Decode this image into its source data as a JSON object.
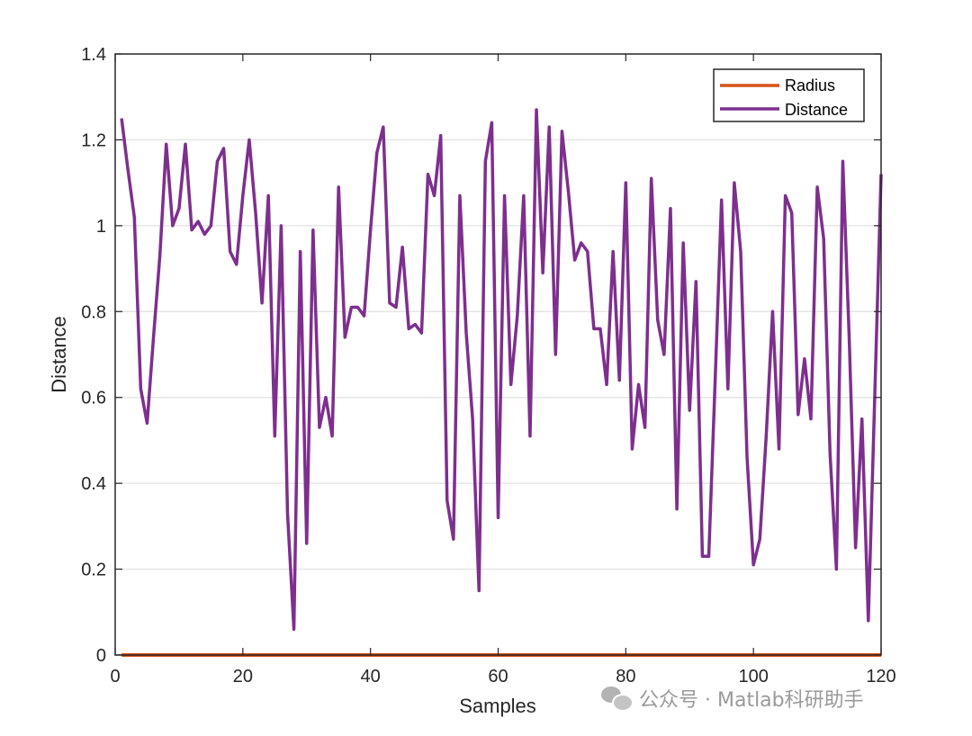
{
  "chart_data": {
    "type": "line",
    "title": "",
    "xlabel": "Samples",
    "ylabel": "Distance",
    "xlim": [
      0,
      120
    ],
    "ylim": [
      0,
      1.4
    ],
    "xticks": [
      0,
      20,
      40,
      60,
      80,
      100,
      120
    ],
    "xtick_labels": [
      "0",
      "20",
      "40",
      "60",
      "80",
      "100",
      "120"
    ],
    "yticks": [
      0,
      0.2,
      0.4,
      0.6,
      0.8,
      1.0,
      1.2,
      1.4
    ],
    "ytick_labels": [
      "0",
      "0.2",
      "0.4",
      "0.6",
      "0.8",
      "1",
      "1.2",
      "1.4"
    ],
    "grid": "horizontal",
    "legend_position": "top-right",
    "series": [
      {
        "name": "Radius",
        "color": "#D95319",
        "x": [
          1,
          120
        ],
        "values": [
          0,
          0
        ]
      },
      {
        "name": "Distance",
        "color": "#7E2F8E",
        "x": [
          1,
          2,
          3,
          4,
          5,
          6,
          7,
          8,
          9,
          10,
          11,
          12,
          13,
          14,
          15,
          16,
          17,
          18,
          19,
          20,
          21,
          22,
          23,
          24,
          25,
          26,
          27,
          28,
          29,
          30,
          31,
          32,
          33,
          34,
          35,
          36,
          37,
          38,
          39,
          40,
          41,
          42,
          43,
          44,
          45,
          46,
          47,
          48,
          49,
          50,
          51,
          52,
          53,
          54,
          55,
          56,
          57,
          58,
          59,
          60,
          61,
          62,
          63,
          64,
          65,
          66,
          67,
          68,
          69,
          70,
          71,
          72,
          73,
          74,
          75,
          76,
          77,
          78,
          79,
          80,
          81,
          82,
          83,
          84,
          85,
          86,
          87,
          88,
          89,
          90,
          91,
          92,
          93,
          94,
          95,
          96,
          97,
          98,
          99,
          100,
          101,
          102,
          103,
          104,
          105,
          106,
          107,
          108,
          109,
          110,
          111,
          112,
          113,
          114,
          115,
          116,
          117,
          118,
          119,
          120
        ],
        "values": [
          1.25,
          1.13,
          1.02,
          0.62,
          0.54,
          0.74,
          0.93,
          1.19,
          1.0,
          1.04,
          1.19,
          0.99,
          1.01,
          0.98,
          1.0,
          1.15,
          1.18,
          0.94,
          0.91,
          1.07,
          1.2,
          1.03,
          0.82,
          1.07,
          0.51,
          1.0,
          0.33,
          0.06,
          0.94,
          0.26,
          0.99,
          0.53,
          0.6,
          0.51,
          1.09,
          0.74,
          0.81,
          0.81,
          0.79,
          0.99,
          1.17,
          1.23,
          0.82,
          0.81,
          0.95,
          0.76,
          0.77,
          0.75,
          1.12,
          1.07,
          1.21,
          0.36,
          0.27,
          1.07,
          0.75,
          0.55,
          0.15,
          1.15,
          1.24,
          0.32,
          1.07,
          0.63,
          0.79,
          1.07,
          0.51,
          1.27,
          0.89,
          1.23,
          0.7,
          1.22,
          1.08,
          0.92,
          0.96,
          0.94,
          0.76,
          0.76,
          0.63,
          0.94,
          0.64,
          1.1,
          0.48,
          0.63,
          0.53,
          1.11,
          0.78,
          0.7,
          1.04,
          0.34,
          0.96,
          0.57,
          0.87,
          0.23,
          0.23,
          0.64,
          1.06,
          0.62,
          1.1,
          0.94,
          0.46,
          0.21,
          0.27,
          0.51,
          0.8,
          0.48,
          1.07,
          1.03,
          0.56,
          0.69,
          0.55,
          1.09,
          0.97,
          0.47,
          0.2,
          1.15,
          0.74,
          0.25,
          0.55,
          0.08,
          0.6,
          1.12
        ]
      }
    ]
  },
  "watermark": {
    "icon": "wechat-icon",
    "text": "公众号 · Matlab科研助手"
  }
}
